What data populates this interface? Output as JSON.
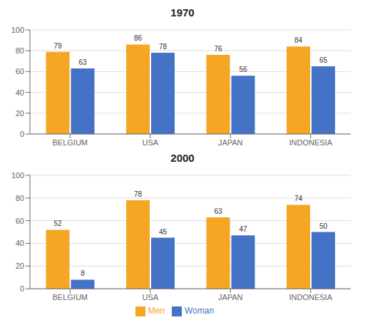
{
  "chart_data": [
    {
      "type": "bar",
      "title": "1970",
      "categories": [
        "BELGIUM",
        "USA",
        "JAPAN",
        "INDONESIA"
      ],
      "series": [
        {
          "name": "Men",
          "color": "#F5A623",
          "values": [
            79,
            86,
            76,
            84
          ]
        },
        {
          "name": "Woman",
          "color": "#4472C4",
          "values": [
            63,
            78,
            56,
            65
          ]
        }
      ],
      "ylim": [
        0,
        100
      ],
      "yticks": [
        0,
        20,
        40,
        60,
        80,
        100
      ],
      "grid": true,
      "data_labels": true
    },
    {
      "type": "bar",
      "title": "2000",
      "categories": [
        "BELGIUM",
        "USA",
        "JAPAN",
        "INDONESIA"
      ],
      "series": [
        {
          "name": "Men",
          "color": "#F5A623",
          "values": [
            52,
            78,
            63,
            74
          ]
        },
        {
          "name": "Woman",
          "color": "#4472C4",
          "values": [
            8,
            45,
            47,
            50
          ]
        }
      ],
      "ylim": [
        0,
        100
      ],
      "yticks": [
        0,
        20,
        40,
        60,
        80,
        100
      ],
      "grid": true,
      "data_labels": true,
      "legend": "bottom"
    }
  ]
}
